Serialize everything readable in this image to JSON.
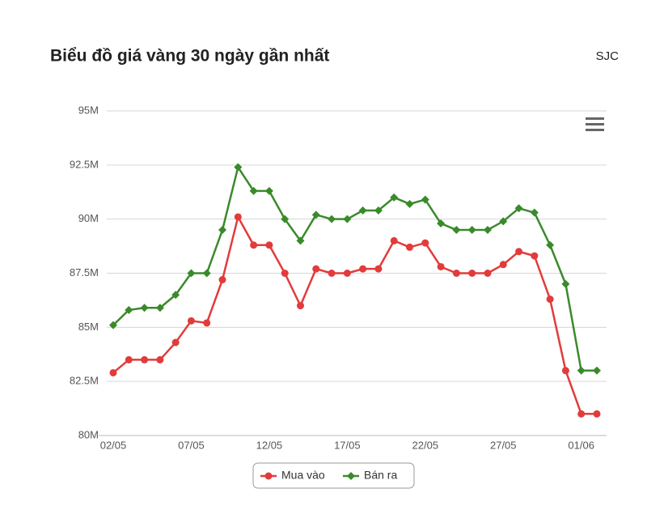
{
  "chart_data": {
    "type": "line",
    "title": "Biểu đồ giá vàng 30 ngày gần nhất",
    "subtitle": "SJC",
    "categories": [
      "02/05",
      null,
      null,
      null,
      null,
      "07/05",
      null,
      null,
      null,
      null,
      "12/05",
      null,
      null,
      null,
      null,
      "17/05",
      null,
      null,
      null,
      null,
      "22/05",
      null,
      null,
      null,
      null,
      "27/05",
      null,
      null,
      null,
      null,
      "01/06",
      null
    ],
    "series": [
      {
        "name": "Mua vào",
        "color": "#e23b3b",
        "marker": "circle",
        "values": [
          82.9,
          83.5,
          83.5,
          83.5,
          84.3,
          85.3,
          85.2,
          87.2,
          90.1,
          88.8,
          88.8,
          87.5,
          86.0,
          87.7,
          87.5,
          87.5,
          87.7,
          87.7,
          89.0,
          88.7,
          88.9,
          87.8,
          87.5,
          87.5,
          87.5,
          87.9,
          88.5,
          88.3,
          86.3,
          83.0,
          81.0,
          81.0
        ]
      },
      {
        "name": "Bán ra",
        "color": "#3a8a2a",
        "marker": "diamond",
        "values": [
          85.1,
          85.8,
          85.9,
          85.9,
          86.5,
          87.5,
          87.5,
          89.5,
          92.4,
          91.3,
          91.3,
          90.0,
          89.0,
          90.2,
          90.0,
          90.0,
          90.4,
          90.4,
          91.0,
          90.7,
          90.9,
          89.8,
          89.5,
          89.5,
          89.5,
          89.9,
          90.5,
          90.3,
          88.8,
          87.0,
          83.0,
          83.0
        ]
      }
    ],
    "ylim": [
      80,
      95
    ],
    "yticks": [
      {
        "value": 80,
        "label": "80M"
      },
      {
        "value": 82.5,
        "label": "82.5M"
      },
      {
        "value": 85,
        "label": "85M"
      },
      {
        "value": 87.5,
        "label": "87.5M"
      },
      {
        "value": 90,
        "label": "90M"
      },
      {
        "value": 92.5,
        "label": "92.5M"
      },
      {
        "value": 95,
        "label": "95M"
      }
    ],
    "grid": true
  }
}
